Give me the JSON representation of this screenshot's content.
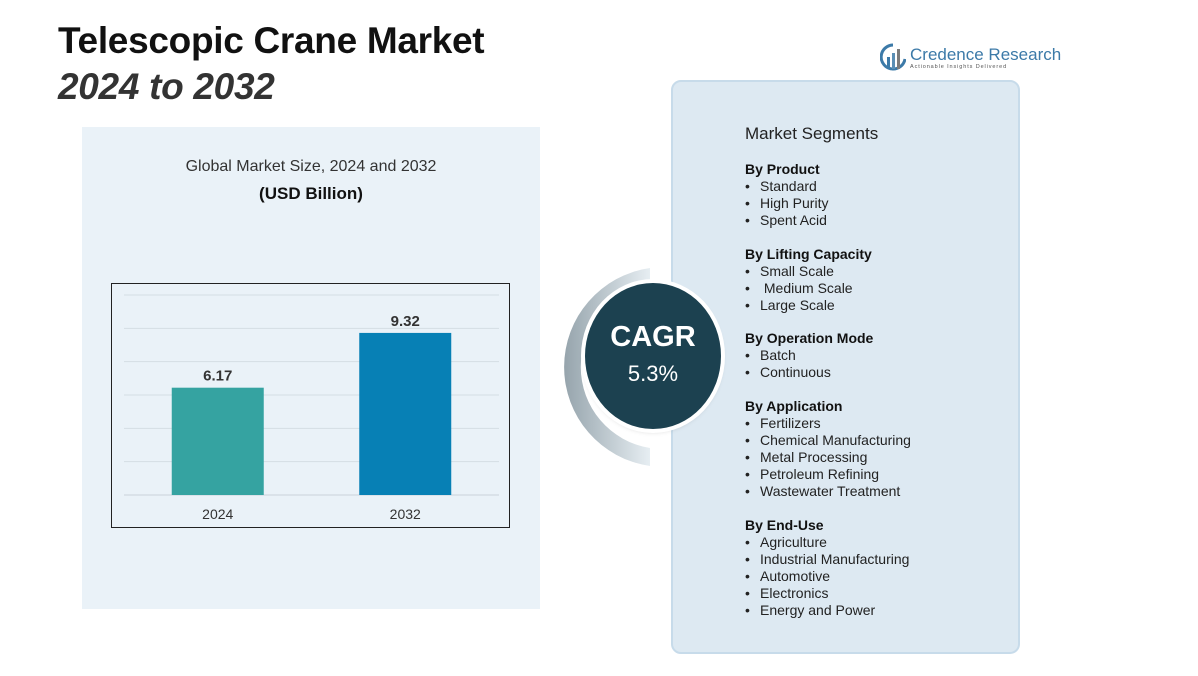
{
  "title": {
    "line1": "Telescopic Crane Market",
    "line2": "2024 to 2032"
  },
  "logo": {
    "name": "Credence Research",
    "tagline": "Actionable Insights Delivered",
    "icon": "credence-logo-icon"
  },
  "chart_data": {
    "type": "bar",
    "title": "Global Market Size, 2024 and 2032",
    "subtitle": "(USD Billion)",
    "categories": [
      "2024",
      "2032"
    ],
    "values": [
      6.17,
      9.32
    ],
    "value_labels": [
      "6.17",
      "9.32"
    ],
    "colors": [
      "#35a3a1",
      "#0780b5"
    ],
    "ylim": [
      0,
      11.5
    ],
    "grid": true,
    "xlabel": "",
    "ylabel": ""
  },
  "cagr": {
    "label": "CAGR",
    "value": "5.3%"
  },
  "segments": {
    "heading": "Market Segments",
    "groups": [
      {
        "title": "By Product",
        "items": [
          "Standard",
          "High Purity",
          "Spent Acid"
        ]
      },
      {
        "title": "By Lifting Capacity",
        "items": [
          "Small Scale",
          " Medium Scale",
          "Large Scale"
        ]
      },
      {
        "title": "By Operation Mode",
        "items": [
          "Batch",
          "Continuous"
        ]
      },
      {
        "title": "By Application",
        "items": [
          "Fertilizers",
          "Chemical Manufacturing",
          "Metal Processing",
          "Petroleum Refining",
          "Wastewater Treatment"
        ]
      },
      {
        "title": "By End-Use",
        "items": [
          "Agriculture",
          "Industrial Manufacturing",
          "Automotive",
          "Electronics",
          "Energy and Power"
        ]
      }
    ]
  }
}
